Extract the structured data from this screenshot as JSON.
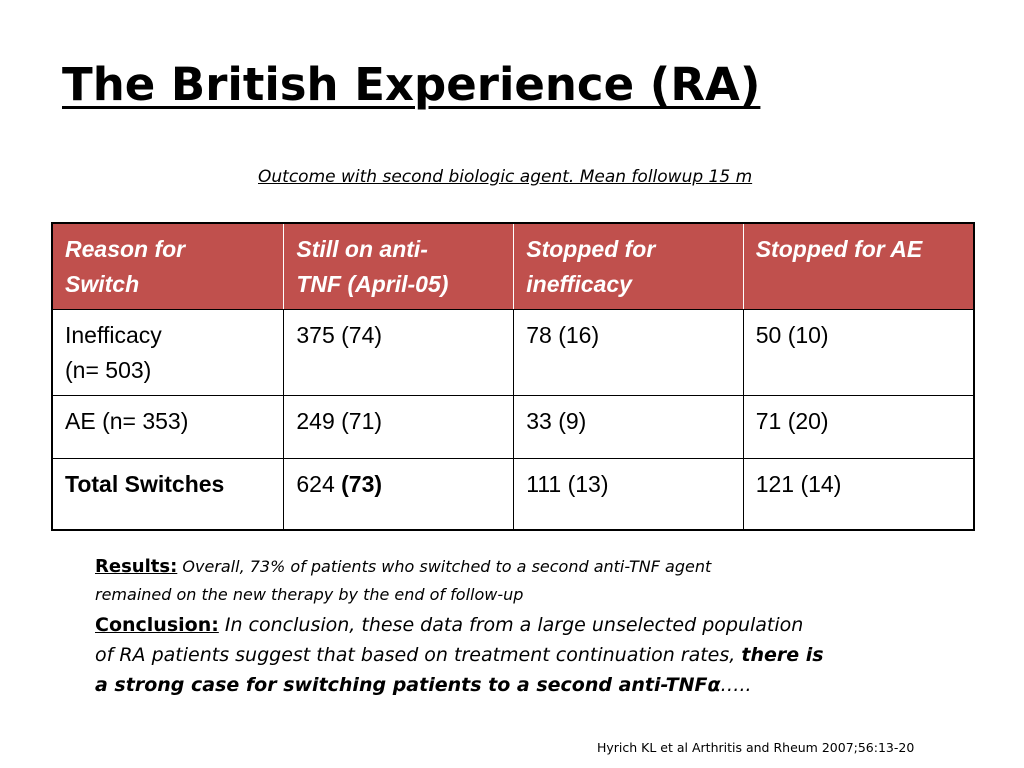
{
  "slide": {
    "title": "The British Experience (RA)",
    "subtitle": "Outcome with second biologic agent. Mean followup 15 m"
  },
  "table": {
    "headers": [
      [
        "Reason for",
        "Switch"
      ],
      [
        "Still on anti-",
        "TNF (April-05)"
      ],
      [
        "Stopped for",
        "inefficacy"
      ],
      [
        "Stopped for AE"
      ]
    ],
    "rows": {
      "inefficacy": {
        "label_line1": "Inefficacy",
        "label_line2": "(n= 503)",
        "still_on": "375 (74)",
        "stopped_inefficacy": "78 (16)",
        "stopped_ae": "50 (10)"
      },
      "ae": {
        "label": "AE (n= 353)",
        "still_on": "249 (71)",
        "stopped_inefficacy": "33 (9)",
        "stopped_ae": "71 (20)"
      },
      "total": {
        "label": "Total Switches",
        "still_on_count": "624",
        "still_on_pct": "(73)",
        "stopped_inefficacy": "111 (13)",
        "stopped_ae": "121 (14)"
      }
    }
  },
  "results": {
    "label": "Results:",
    "line1": "Overall, 73% of patients who switched to a second anti-TNF agent",
    "line2": "remained on the new therapy by the end of follow-up"
  },
  "conclusion": {
    "label": "Conclusion:",
    "line1": "In conclusion, these data from a large unselected population",
    "line2_normal": "of RA patients suggest that based on treatment continuation rates, ",
    "line2_bold": "there is",
    "line3_bold": "a strong case for switching patients to a second anti-TNFα",
    "line3_tail": "….."
  },
  "citation": "Hyrich KL et al Arthritis and Rheum 2007;56:13-20"
}
